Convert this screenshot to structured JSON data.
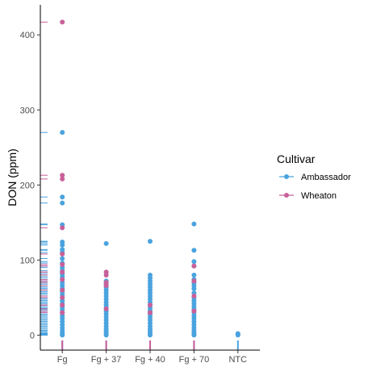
{
  "chart_data": {
    "type": "scatter",
    "xlabel": "",
    "ylabel": "DON (ppm)",
    "categories": [
      "Fg",
      "Fg + 37",
      "Fg + 40",
      "Fg + 70",
      "NTC"
    ],
    "ylim": [
      -20,
      440
    ],
    "yticks": [
      0,
      100,
      200,
      300,
      400
    ],
    "rug": true,
    "legend": {
      "title": "Cultivar",
      "position": "right"
    },
    "colors": {
      "Ambassador": "#4aa3df",
      "Wheaton": "#c8609a"
    },
    "series": [
      {
        "name": "Ambassador",
        "color": "#4aa3df",
        "points": {
          "Fg": [
            270,
            184,
            176,
            147,
            124,
            120,
            114,
            110,
            102,
            96,
            90,
            86,
            82,
            78,
            74,
            70,
            66,
            62,
            58,
            54,
            50,
            46,
            42,
            38,
            34,
            30,
            26,
            22,
            18,
            14,
            10,
            6,
            3,
            1,
            0
          ],
          "Fg + 37": [
            122,
            72,
            68,
            64,
            60,
            56,
            52,
            48,
            44,
            40,
            36,
            32,
            28,
            24,
            20,
            16,
            12,
            8,
            5,
            2,
            0
          ],
          "Fg + 40": [
            125,
            80,
            76,
            72,
            68,
            64,
            60,
            56,
            52,
            48,
            44,
            40,
            36,
            32,
            28,
            24,
            20,
            16,
            12,
            8,
            5,
            2,
            0
          ],
          "Fg + 70": [
            148,
            113,
            98,
            92,
            80,
            74,
            70,
            66,
            62,
            56,
            50,
            46,
            42,
            38,
            34,
            30,
            26,
            22,
            18,
            14,
            10,
            6,
            3,
            1,
            0
          ],
          "NTC": [
            2,
            1,
            0
          ]
        }
      },
      {
        "name": "Wheaton",
        "color": "#c8609a",
        "points": {
          "Fg": [
            417,
            213,
            208,
            143,
            108,
            94,
            84,
            74,
            60,
            50,
            40,
            30
          ],
          "Fg + 37": [
            84,
            80,
            70,
            66,
            35
          ],
          "Fg + 40": [
            40,
            30
          ],
          "Fg + 70": [
            92,
            72,
            52,
            32
          ],
          "NTC": []
        }
      }
    ]
  }
}
